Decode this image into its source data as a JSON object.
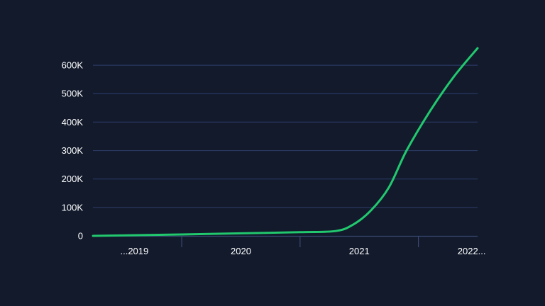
{
  "chart_data": {
    "type": "line",
    "colors": {
      "background": "#121a2c",
      "grid": "#2a3760",
      "axis": "#3a4872",
      "line": "#22c86e",
      "text": "#ffffff"
    },
    "y_ticks": [
      {
        "value": 0,
        "label": "0"
      },
      {
        "value": 100000,
        "label": "100K"
      },
      {
        "value": 200000,
        "label": "200K"
      },
      {
        "value": 300000,
        "label": "300K"
      },
      {
        "value": 400000,
        "label": "400K"
      },
      {
        "value": 500000,
        "label": "500K"
      },
      {
        "value": 600000,
        "label": "600K"
      }
    ],
    "x_labels": [
      {
        "label": "...2019",
        "at": 2019.1
      },
      {
        "label": "2020",
        "at": 2020.0
      },
      {
        "label": "2021",
        "at": 2021.0
      },
      {
        "label": "2022...",
        "at": 2021.95
      }
    ],
    "x_dividers": [
      2019.5,
      2020.5,
      2021.5
    ],
    "xlim": [
      2018.75,
      2022.0
    ],
    "ylim": [
      0,
      660000
    ],
    "grid": true,
    "series": [
      {
        "values": [
          {
            "x": 2018.75,
            "y": 0
          },
          {
            "x": 2019.5,
            "y": 5000
          },
          {
            "x": 2020.0,
            "y": 9000
          },
          {
            "x": 2020.5,
            "y": 13000
          },
          {
            "x": 2020.8,
            "y": 17000
          },
          {
            "x": 2020.95,
            "y": 40000
          },
          {
            "x": 2021.1,
            "y": 90000
          },
          {
            "x": 2021.25,
            "y": 170000
          },
          {
            "x": 2021.4,
            "y": 300000
          },
          {
            "x": 2021.6,
            "y": 440000
          },
          {
            "x": 2021.8,
            "y": 560000
          },
          {
            "x": 2022.0,
            "y": 660000
          }
        ]
      }
    ]
  }
}
